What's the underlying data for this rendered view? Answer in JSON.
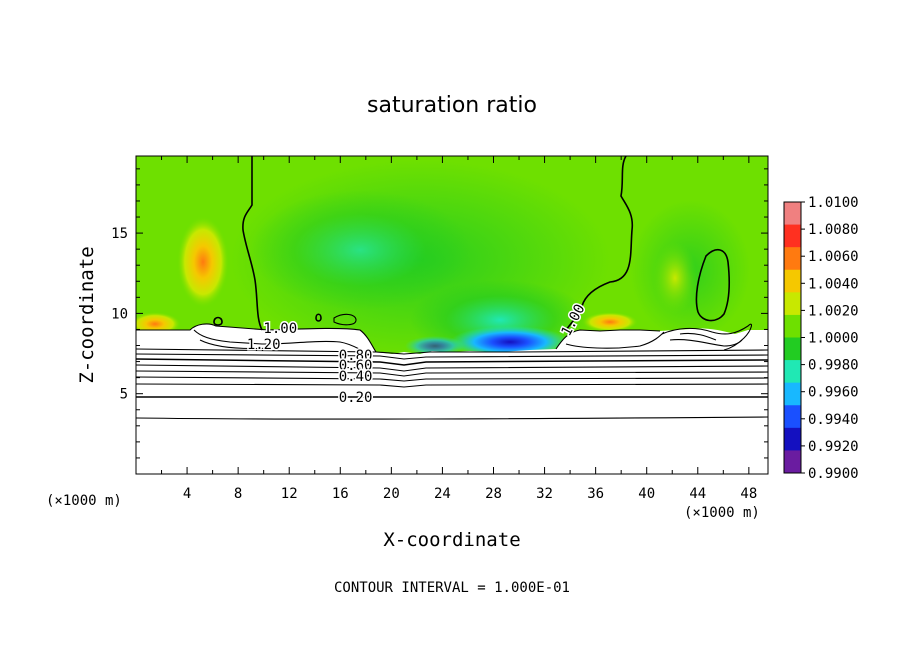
{
  "chart_data": {
    "type": "heatmap",
    "title": "saturation ratio",
    "xlabel": "X-coordinate",
    "ylabel": "Z-coordinate",
    "x_unit_label": "(×1000 m)",
    "x_unit_label_right": "(×1000 m)",
    "footer": "CONTOUR INTERVAL = 1.000E-01",
    "xlim": [
      0,
      49.5
    ],
    "ylim": [
      0,
      19.8
    ],
    "x_ticks": [
      "4",
      "8",
      "12",
      "16",
      "20",
      "24",
      "28",
      "32",
      "36",
      "40",
      "44",
      "48"
    ],
    "y_ticks": [
      "5",
      "10",
      "15"
    ],
    "colorbar": {
      "labels": [
        "1.0100",
        "1.0080",
        "1.0060",
        "1.0040",
        "1.0020",
        "1.0000",
        "0.9980",
        "0.9960",
        "0.9940",
        "0.9920",
        "0.9900"
      ],
      "colors": [
        "#f08080",
        "#ff3020",
        "#ff7a10",
        "#f5c800",
        "#c8e800",
        "#6ee000",
        "#22cc22",
        "#20e8b4",
        "#18b8ff",
        "#1a50ff",
        "#1410c0",
        "#6a1ca0"
      ]
    },
    "contour_labels": [
      {
        "text": "1.00",
        "x": 11.3,
        "z": 9.1
      },
      {
        "text": "1.20",
        "x": 10.0,
        "z": 8.1
      },
      {
        "text": "1.00",
        "x": 34.2,
        "z": 9.6
      },
      {
        "text": "0.80",
        "x": 17.2,
        "z": 7.4
      },
      {
        "text": "0.60",
        "x": 17.2,
        "z": 6.8
      },
      {
        "text": "0.40",
        "x": 17.2,
        "z": 6.1
      },
      {
        "text": "0.20",
        "x": 17.2,
        "z": 4.8
      }
    ]
  }
}
